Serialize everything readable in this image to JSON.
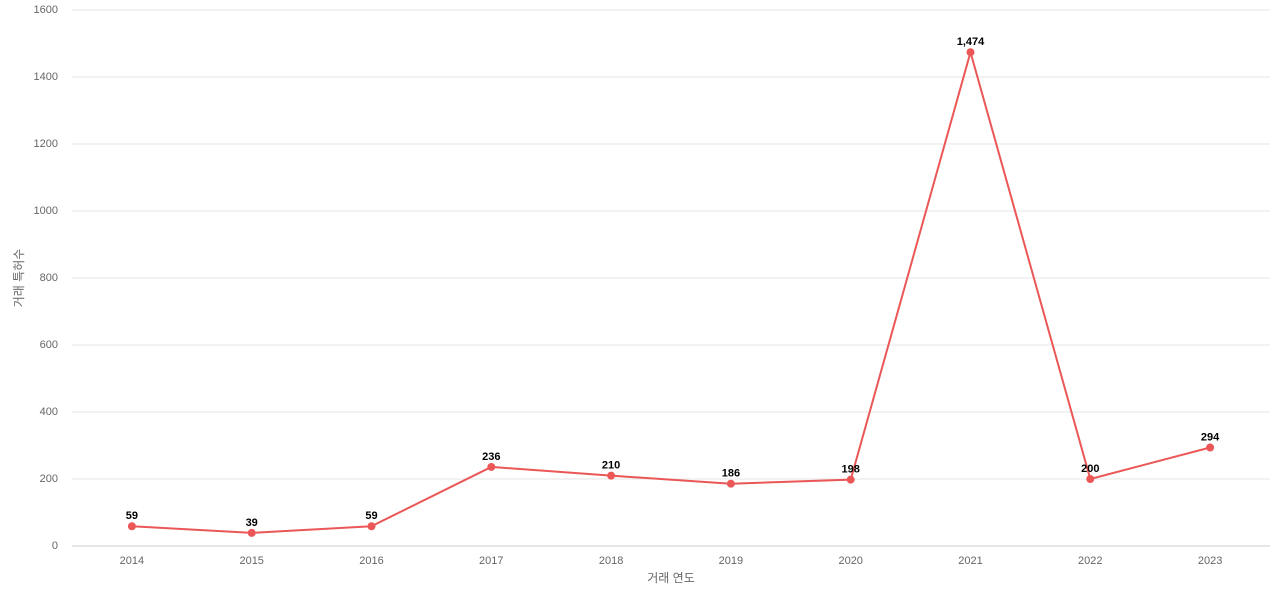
{
  "chart_data": {
    "type": "line",
    "x_label": "거래 연도",
    "y_label": "거래 특허수",
    "categories": [
      "2014",
      "2015",
      "2016",
      "2017",
      "2018",
      "2019",
      "2020",
      "2021",
      "2022",
      "2023"
    ],
    "series": [
      {
        "color": "#eb5757",
        "values": [
          59,
          39,
          59,
          236,
          210,
          186,
          198,
          1474,
          200,
          294
        ],
        "value_labels": [
          "59",
          "39",
          "59",
          "236",
          "210",
          "186",
          "198",
          "1,474",
          "200",
          "294"
        ]
      }
    ],
    "ylim": [
      0,
      1600
    ],
    "yticks": [
      0,
      200,
      400,
      600,
      800,
      1000,
      1200,
      1400,
      1600
    ],
    "grid": true
  }
}
